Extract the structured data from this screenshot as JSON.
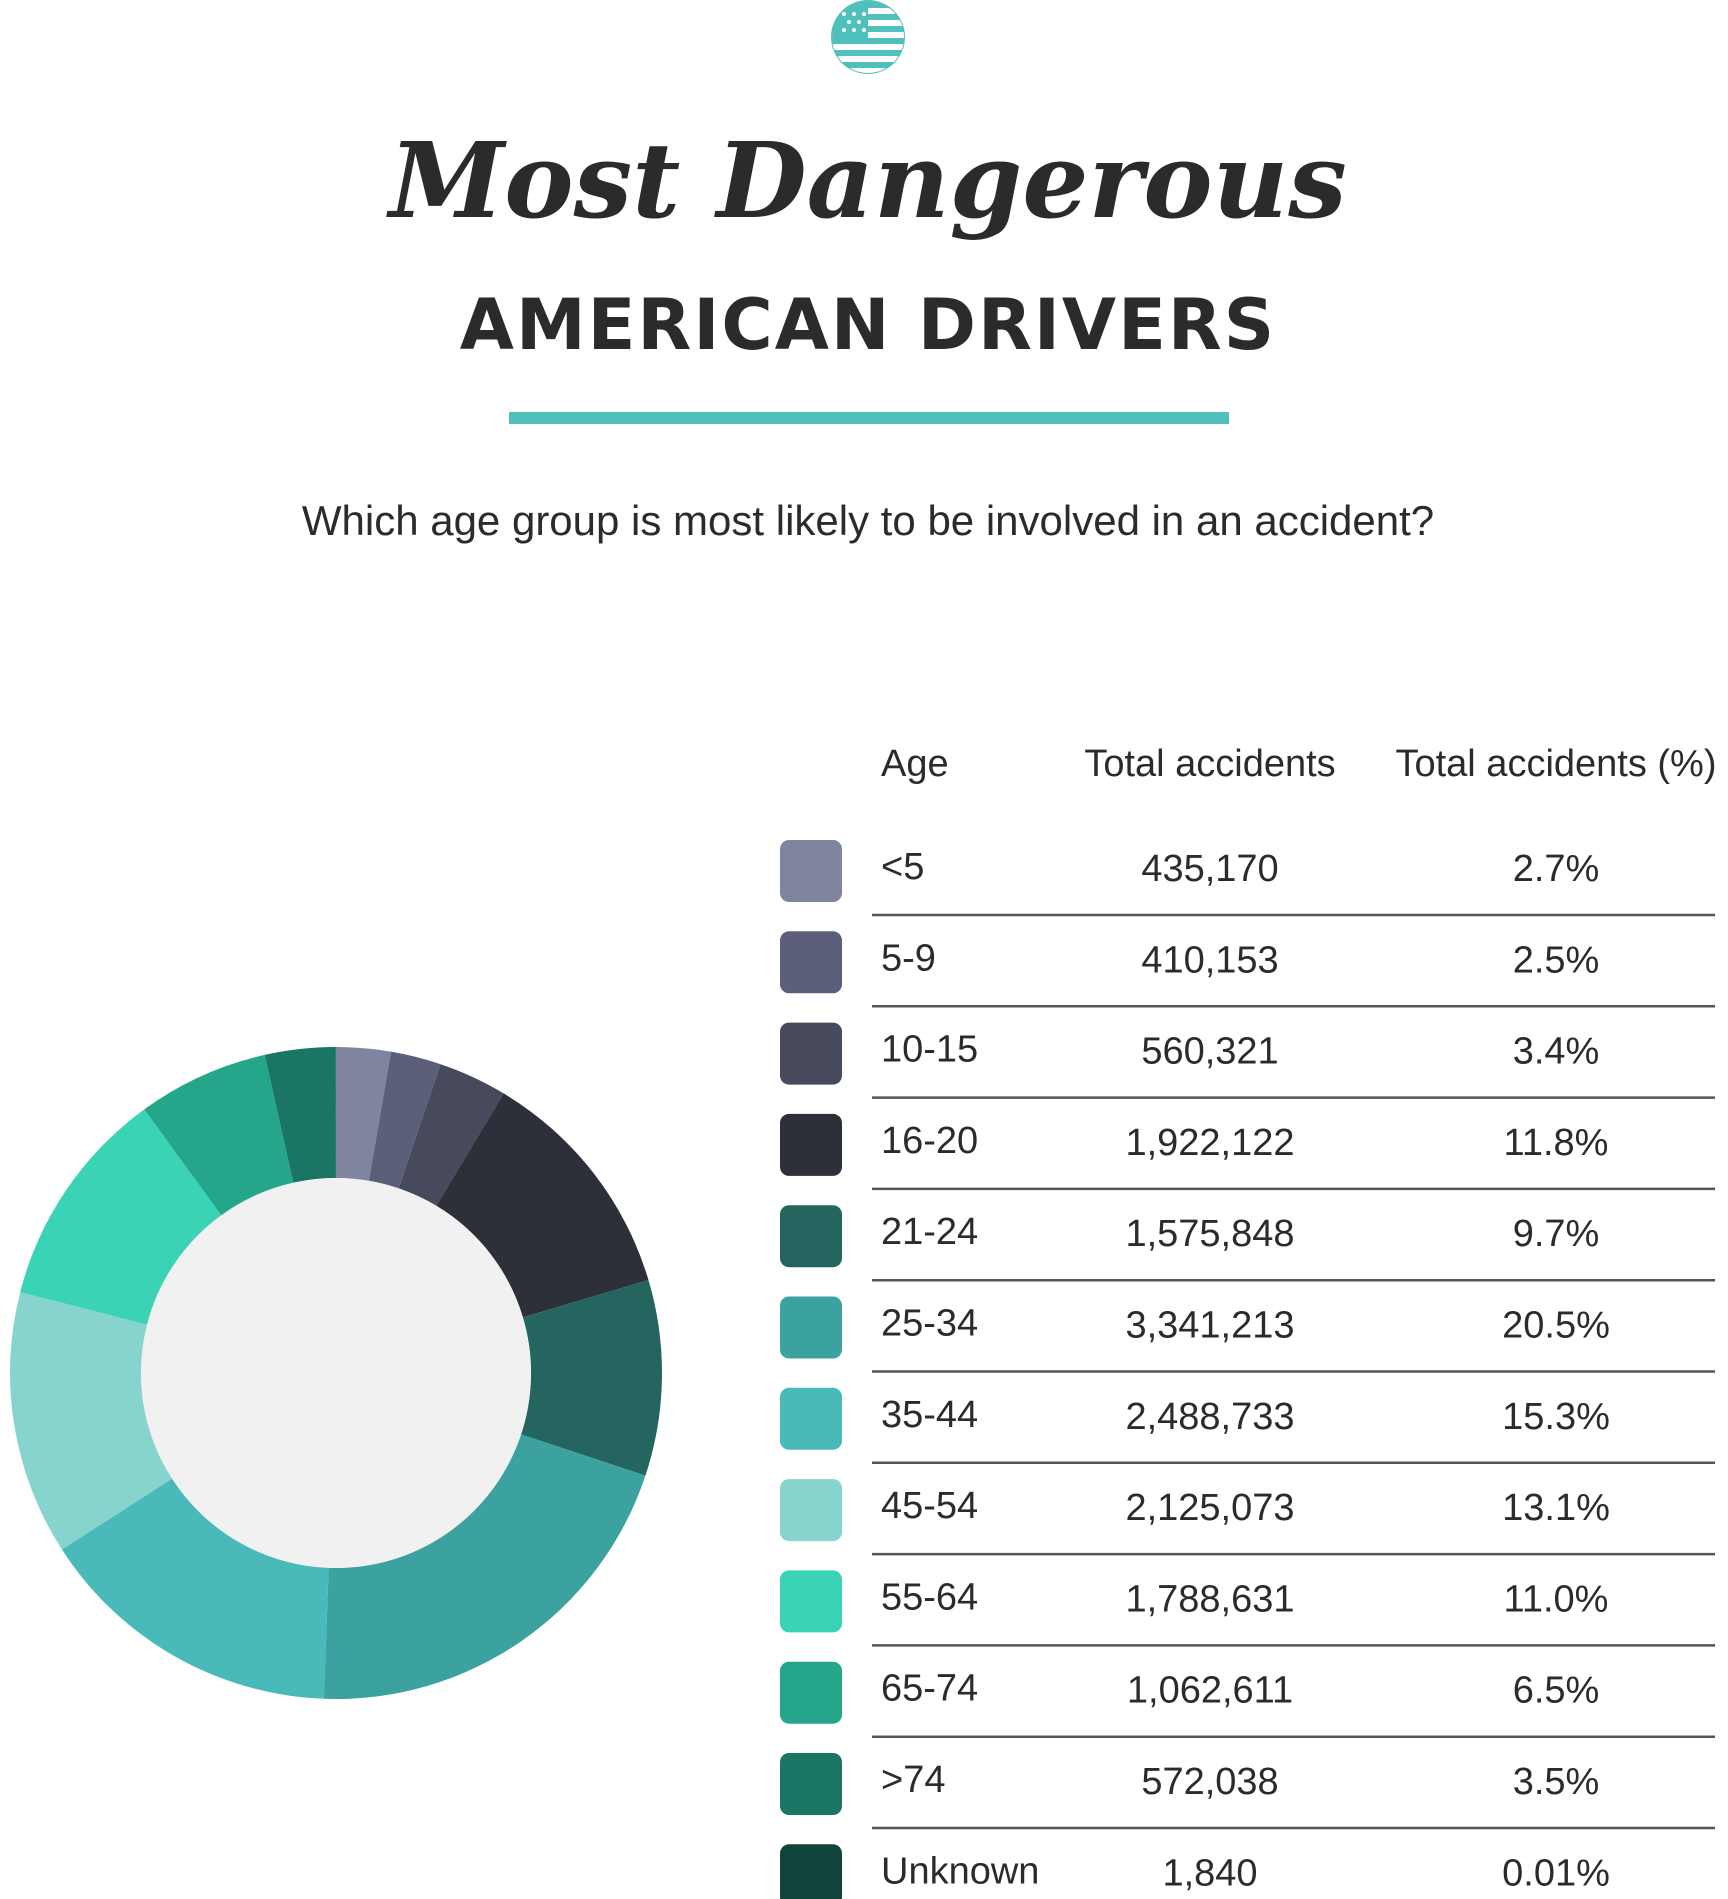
{
  "chart_data": {
    "type": "donut",
    "title": "Most Dangerous",
    "subtitle": "AMERICAN DRIVERS",
    "question": "Which age group is most likely to be involved in an accident?",
    "columns": [
      "Age",
      "Total accidents",
      "Total accidents (%)"
    ],
    "categories": [
      "<5",
      "5-9",
      "10-15",
      "16-20",
      "21-24",
      "25-34",
      "35-44",
      "45-54",
      "55-64",
      "65-74",
      ">74",
      "Unknown"
    ],
    "totals": [
      "435,170",
      "410,153",
      "560,321",
      "1,922,122",
      "1,575,848",
      "3,341,213",
      "2,488,733",
      "2,125,073",
      "1,788,631",
      "1,062,611",
      "572,038",
      "1,840"
    ],
    "values": [
      2.7,
      2.5,
      3.4,
      11.8,
      9.7,
      20.5,
      15.3,
      13.1,
      11.0,
      6.5,
      3.5,
      0.01
    ],
    "value_labels": [
      "2.7%",
      "2.5%",
      "3.4%",
      "11.8%",
      "9.7%",
      "20.5%",
      "15.3%",
      "13.1%",
      "11.0%",
      "6.5%",
      "3.5%",
      "0.01%"
    ],
    "colors": [
      "#7f849f",
      "#5b5f7a",
      "#474a5c",
      "#2d3039",
      "#25655f",
      "#3ba2a0",
      "#4ab9b9",
      "#87d3cd",
      "#3ad3b6",
      "#25a589",
      "#1b7564",
      "#10443b"
    ]
  }
}
